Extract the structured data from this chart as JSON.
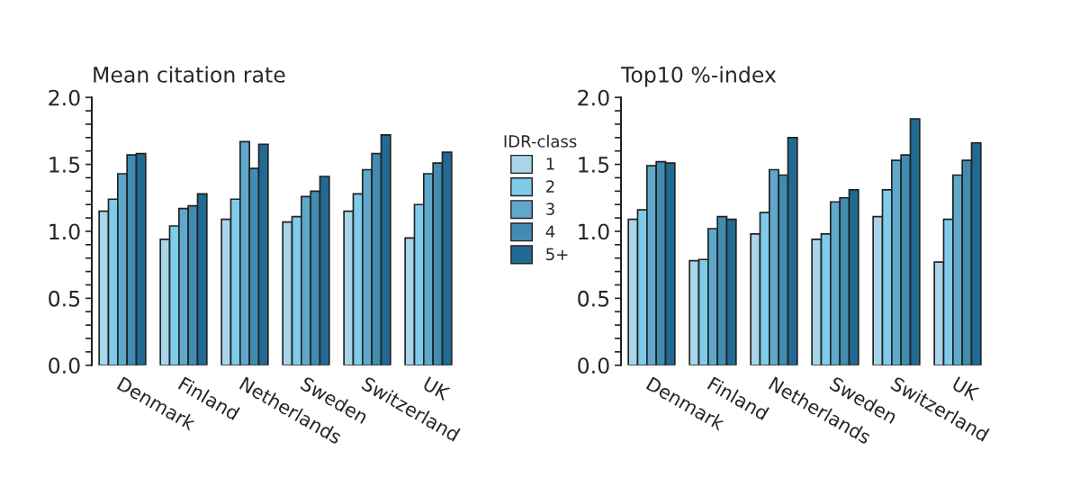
{
  "chart_data": [
    {
      "type": "bar",
      "title": "Mean citation rate",
      "legend_title": "IDR-class",
      "legend": "right",
      "grid": false,
      "categories": [
        "Denmark",
        "Finland",
        "Netherlands",
        "Sweden",
        "Switzerland",
        "UK"
      ],
      "series": [
        {
          "name": "1",
          "color": "#a8d5ea",
          "values": [
            1.15,
            0.94,
            1.09,
            1.07,
            1.15,
            0.95
          ]
        },
        {
          "name": "2",
          "color": "#7ecbea",
          "values": [
            1.24,
            1.04,
            1.24,
            1.11,
            1.28,
            1.2
          ]
        },
        {
          "name": "3",
          "color": "#5fa8cb",
          "values": [
            1.43,
            1.17,
            1.67,
            1.26,
            1.46,
            1.43
          ]
        },
        {
          "name": "4",
          "color": "#418cb0",
          "values": [
            1.57,
            1.19,
            1.47,
            1.3,
            1.58,
            1.51
          ]
        },
        {
          "name": "5+",
          "color": "#216a93",
          "values": [
            1.58,
            1.28,
            1.65,
            1.41,
            1.72,
            1.59
          ]
        }
      ],
      "ylim": [
        0,
        2
      ],
      "yticks": [
        {
          "value": 0,
          "label": "0.0"
        },
        {
          "value": 0.1,
          "label": null
        },
        {
          "value": 0.2,
          "label": null
        },
        {
          "value": 0.3,
          "label": null
        },
        {
          "value": 0.4,
          "label": null
        },
        {
          "value": 0.5,
          "label": "0.5"
        },
        {
          "value": 0.6,
          "label": null
        },
        {
          "value": 0.7,
          "label": null
        },
        {
          "value": 0.8,
          "label": null
        },
        {
          "value": 0.9,
          "label": null
        },
        {
          "value": 1,
          "label": "1.0"
        },
        {
          "value": 1.1,
          "label": null
        },
        {
          "value": 1.2,
          "label": null
        },
        {
          "value": 1.3,
          "label": null
        },
        {
          "value": 1.4,
          "label": null
        },
        {
          "value": 1.5,
          "label": "1.5"
        },
        {
          "value": 1.6,
          "label": null
        },
        {
          "value": 1.7,
          "label": null
        },
        {
          "value": 1.8,
          "label": null
        },
        {
          "value": 1.9,
          "label": null
        },
        {
          "value": 2,
          "label": "2.0"
        }
      ]
    },
    {
      "type": "bar",
      "title": "Top10 %-index",
      "grid": false,
      "categories": [
        "Denmark",
        "Finland",
        "Netherlands",
        "Sweden",
        "Switzerland",
        "UK"
      ],
      "series": [
        {
          "color": "#a8d5ea",
          "values": [
            1.09,
            0.78,
            0.98,
            0.94,
            1.11,
            0.77
          ]
        },
        {
          "color": "#7ecbea",
          "values": [
            1.16,
            0.79,
            1.14,
            0.98,
            1.31,
            1.09
          ]
        },
        {
          "color": "#5fa8cb",
          "values": [
            1.49,
            1.02,
            1.46,
            1.22,
            1.53,
            1.42
          ]
        },
        {
          "color": "#418cb0",
          "values": [
            1.52,
            1.11,
            1.42,
            1.25,
            1.57,
            1.53
          ]
        },
        {
          "color": "#216a93",
          "values": [
            1.51,
            1.09,
            1.7,
            1.31,
            1.84,
            1.66
          ]
        }
      ],
      "ylim": [
        0,
        2
      ],
      "yticks": [
        {
          "value": 0,
          "label": "0.0"
        },
        {
          "value": 0.1,
          "label": null
        },
        {
          "value": 0.2,
          "label": null
        },
        {
          "value": 0.3,
          "label": null
        },
        {
          "value": 0.4,
          "label": null
        },
        {
          "value": 0.5,
          "label": "0.5"
        },
        {
          "value": 0.6,
          "label": null
        },
        {
          "value": 0.7,
          "label": null
        },
        {
          "value": 0.8,
          "label": null
        },
        {
          "value": 0.9,
          "label": null
        },
        {
          "value": 1,
          "label": "1.0"
        },
        {
          "value": 1.1,
          "label": null
        },
        {
          "value": 1.2,
          "label": null
        },
        {
          "value": 1.3,
          "label": null
        },
        {
          "value": 1.4,
          "label": null
        },
        {
          "value": 1.5,
          "label": "1.5"
        },
        {
          "value": 1.6,
          "label": null
        },
        {
          "value": 1.7,
          "label": null
        },
        {
          "value": 1.8,
          "label": null
        },
        {
          "value": 1.9,
          "label": null
        },
        {
          "value": 2,
          "label": "2.0"
        }
      ]
    }
  ]
}
